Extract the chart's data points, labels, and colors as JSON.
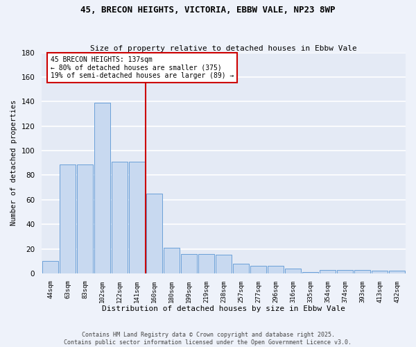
{
  "title1": "45, BRECON HEIGHTS, VICTORIA, EBBW VALE, NP23 8WP",
  "title2": "Size of property relative to detached houses in Ebbw Vale",
  "xlabel": "Distribution of detached houses by size in Ebbw Vale",
  "ylabel": "Number of detached properties",
  "categories": [
    "44sqm",
    "63sqm",
    "83sqm",
    "102sqm",
    "122sqm",
    "141sqm",
    "160sqm",
    "180sqm",
    "199sqm",
    "219sqm",
    "238sqm",
    "257sqm",
    "277sqm",
    "296sqm",
    "316sqm",
    "335sqm",
    "354sqm",
    "374sqm",
    "393sqm",
    "413sqm",
    "432sqm"
  ],
  "values": [
    10,
    89,
    89,
    139,
    91,
    91,
    65,
    21,
    16,
    16,
    15,
    8,
    6,
    6,
    4,
    1,
    3,
    3,
    3,
    2,
    2
  ],
  "bar_color": "#c8d9f0",
  "bar_edge_color": "#6a9fd8",
  "vline_color": "#cc0000",
  "vline_x_index": 5.5,
  "annotation_text": "45 BRECON HEIGHTS: 137sqm\n← 80% of detached houses are smaller (375)\n19% of semi-detached houses are larger (89) →",
  "annotation_box_color": "#ffffff",
  "annotation_box_edge": "#cc0000",
  "ylim": [
    0,
    180
  ],
  "yticks": [
    0,
    20,
    40,
    60,
    80,
    100,
    120,
    140,
    160,
    180
  ],
  "fig_bg_color": "#eef2fa",
  "ax_bg_color": "#e4eaf5",
  "grid_color": "#ffffff",
  "footer1": "Contains HM Land Registry data © Crown copyright and database right 2025.",
  "footer2": "Contains public sector information licensed under the Open Government Licence v3.0."
}
